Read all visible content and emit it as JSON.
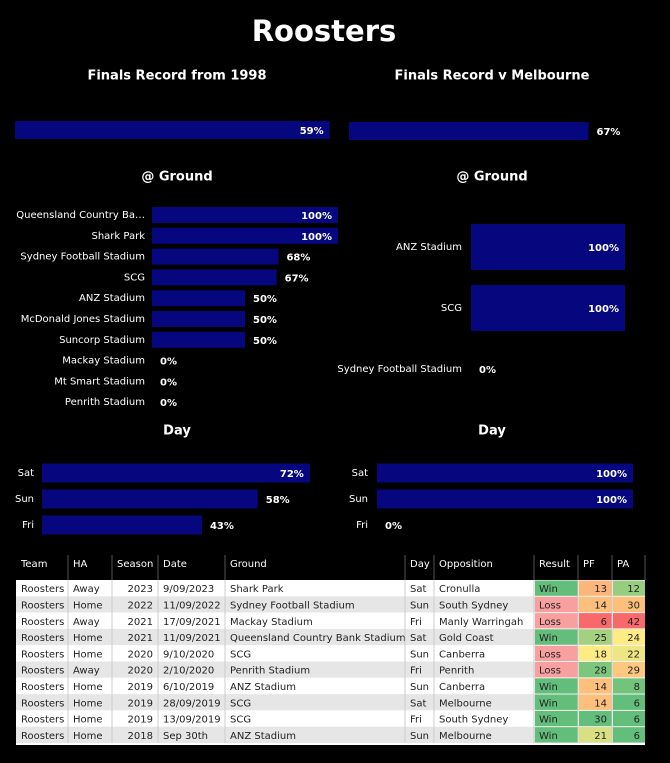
{
  "title": "Roosters",
  "chart_data": [
    {
      "type": "bar",
      "orientation": "horizontal",
      "title": "Finals Record from 1998",
      "categories": [
        null
      ],
      "values": [
        59
      ],
      "value_labels": [
        "59%"
      ],
      "xlim": [
        0,
        60
      ],
      "color": "#06067e"
    },
    {
      "type": "bar",
      "orientation": "horizontal",
      "title": "Finals Record v Melbourne",
      "categories": [
        null
      ],
      "values": [
        67
      ],
      "value_labels": [
        "67%"
      ],
      "xlim": [
        0,
        87
      ],
      "color": "#06067e"
    },
    {
      "type": "bar",
      "orientation": "horizontal",
      "title": "@ Ground",
      "categories": [
        "Queensland Country Ba…",
        "Shark Park",
        "Sydney Football Stadium",
        "SCG",
        "ANZ Stadium",
        "McDonald Jones Stadium",
        "Suncorp Stadium",
        "Mackay Stadium",
        "Mt Smart Stadium",
        "Penrith Stadium"
      ],
      "values": [
        100,
        100,
        68,
        67,
        50,
        50,
        50,
        0,
        0,
        0
      ],
      "value_labels": [
        "100%",
        "100%",
        "68%",
        "67%",
        "50%",
        "50%",
        "50%",
        "0%",
        "0%",
        "0%"
      ],
      "xlim": [
        0,
        100
      ],
      "color": "#06067e"
    },
    {
      "type": "bar",
      "orientation": "horizontal",
      "title": "@ Ground",
      "categories": [
        "ANZ Stadium",
        "SCG",
        "Sydney Football Stadium"
      ],
      "values": [
        100,
        100,
        0
      ],
      "value_labels": [
        "100%",
        "100%",
        "0%"
      ],
      "xlim": [
        0,
        100
      ],
      "color": "#06067e"
    },
    {
      "type": "bar",
      "orientation": "horizontal",
      "title": "Day",
      "categories": [
        "Sat",
        "Sun",
        "Fri"
      ],
      "values": [
        72,
        58,
        43
      ],
      "value_labels": [
        "72%",
        "58%",
        "43%"
      ],
      "xlim": [
        0,
        100
      ],
      "color": "#06067e"
    },
    {
      "type": "bar",
      "orientation": "horizontal",
      "title": "Day",
      "categories": [
        "Sat",
        "Sun",
        "Fri"
      ],
      "values": [
        100,
        100,
        0
      ],
      "value_labels": [
        "100%",
        "100%",
        "0%"
      ],
      "xlim": [
        0,
        100
      ],
      "color": "#06067e"
    }
  ],
  "table": {
    "columns": [
      "Team",
      "HA",
      "Season",
      "Date",
      "Ground",
      "Day",
      "Opposition",
      "Result",
      "PF",
      "PA"
    ],
    "rows": [
      [
        "Roosters",
        "Away",
        2023,
        "9/09/2023",
        "Shark Park",
        "Sat",
        "Cronulla",
        "Win",
        13,
        12
      ],
      [
        "Roosters",
        "Home",
        2022,
        "11/09/2022",
        "Sydney Football Stadium",
        "Sun",
        "South Sydney",
        "Loss",
        14,
        30
      ],
      [
        "Roosters",
        "Away",
        2021,
        "17/09/2021",
        "Mackay Stadium",
        "Fri",
        "Manly Warringah",
        "Loss",
        6,
        42
      ],
      [
        "Roosters",
        "Home",
        2021,
        "11/09/2021",
        "Queensland Country Bank Stadium",
        "Sat",
        "Gold Coast",
        "Win",
        25,
        24
      ],
      [
        "Roosters",
        "Home",
        2020,
        "9/10/2020",
        "SCG",
        "Sun",
        "Canberra",
        "Loss",
        18,
        22
      ],
      [
        "Roosters",
        "Away",
        2020,
        "2/10/2020",
        "Penrith Stadium",
        "Fri",
        "Penrith",
        "Loss",
        28,
        29
      ],
      [
        "Roosters",
        "Home",
        2019,
        "6/10/2019",
        "ANZ Stadium",
        "Sun",
        "Canberra",
        "Win",
        14,
        8
      ],
      [
        "Roosters",
        "Home",
        2019,
        "28/09/2019",
        "SCG",
        "Sat",
        "Melbourne",
        "Win",
        14,
        6
      ],
      [
        "Roosters",
        "Home",
        2019,
        "13/09/2019",
        "SCG",
        "Fri",
        "South Sydney",
        "Win",
        30,
        6
      ],
      [
        "Roosters",
        "Home",
        2018,
        "Sep 30th",
        "ANZ Stadium",
        "Sun",
        "Melbourne",
        "Win",
        21,
        6
      ]
    ]
  }
}
